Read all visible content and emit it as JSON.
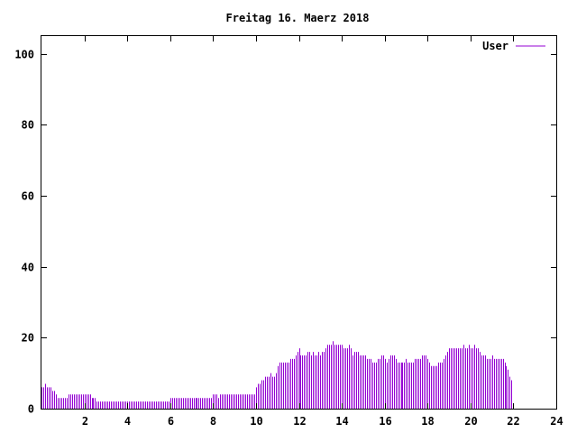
{
  "chart_data": {
    "type": "bar",
    "title": "Freitag 16. Maerz 2018",
    "xlabel": "",
    "ylabel": "",
    "xlim": [
      0,
      24
    ],
    "ylim": [
      0,
      105
    ],
    "x_ticks": [
      2,
      4,
      6,
      8,
      10,
      12,
      14,
      16,
      18,
      20,
      22,
      24
    ],
    "y_ticks": [
      0,
      20,
      40,
      60,
      80,
      100
    ],
    "grid": false,
    "legend_position": "top-right",
    "interval_minutes": 5,
    "series": [
      {
        "name": "User",
        "color": "#9400d3",
        "values": [
          6,
          6,
          7,
          6,
          6,
          6,
          5,
          5,
          4,
          3,
          3,
          3,
          3,
          3,
          3,
          4,
          4,
          4,
          4,
          4,
          4,
          4,
          4,
          4,
          4,
          4,
          4,
          4,
          3,
          3,
          3,
          2,
          2,
          2,
          2,
          2,
          2,
          2,
          2,
          2,
          2,
          2,
          2,
          2,
          2,
          2,
          2,
          2,
          2,
          2,
          2,
          2,
          2,
          2,
          2,
          2,
          2,
          2,
          2,
          2,
          2,
          2,
          2,
          2,
          2,
          2,
          2,
          2,
          2,
          2,
          2,
          2,
          3,
          3,
          3,
          3,
          3,
          3,
          3,
          3,
          3,
          3,
          3,
          3,
          3,
          3,
          3,
          3,
          3,
          3,
          3,
          3,
          3,
          3,
          3,
          3,
          4,
          4,
          4,
          3,
          4,
          4,
          4,
          4,
          4,
          4,
          4,
          4,
          4,
          4,
          4,
          4,
          4,
          4,
          4,
          4,
          4,
          4,
          4,
          4,
          6,
          7,
          7,
          8,
          8,
          9,
          9,
          9,
          10,
          9,
          9,
          10,
          12,
          13,
          13,
          13,
          13,
          13,
          13,
          14,
          14,
          14,
          15,
          16,
          17,
          15,
          15,
          15,
          15,
          16,
          16,
          15,
          16,
          15,
          15,
          16,
          15,
          16,
          16,
          17,
          18,
          18,
          18,
          19,
          18,
          18,
          18,
          18,
          18,
          17,
          17,
          17,
          18,
          17,
          15,
          16,
          16,
          16,
          15,
          15,
          15,
          15,
          14,
          14,
          14,
          13,
          13,
          13,
          14,
          14,
          15,
          15,
          14,
          13,
          14,
          15,
          15,
          15,
          14,
          13,
          13,
          13,
          13,
          13,
          14,
          13,
          13,
          13,
          13,
          14,
          14,
          14,
          14,
          15,
          15,
          15,
          14,
          13,
          12,
          12,
          12,
          12,
          13,
          13,
          13,
          14,
          15,
          16,
          17,
          17,
          17,
          17,
          17,
          17,
          17,
          17,
          18,
          17,
          17,
          18,
          17,
          17,
          18,
          17,
          17,
          16,
          15,
          15,
          15,
          14,
          14,
          14,
          15,
          14,
          14,
          14,
          14,
          14,
          14,
          13,
          12,
          11,
          9,
          8
        ]
      }
    ]
  }
}
